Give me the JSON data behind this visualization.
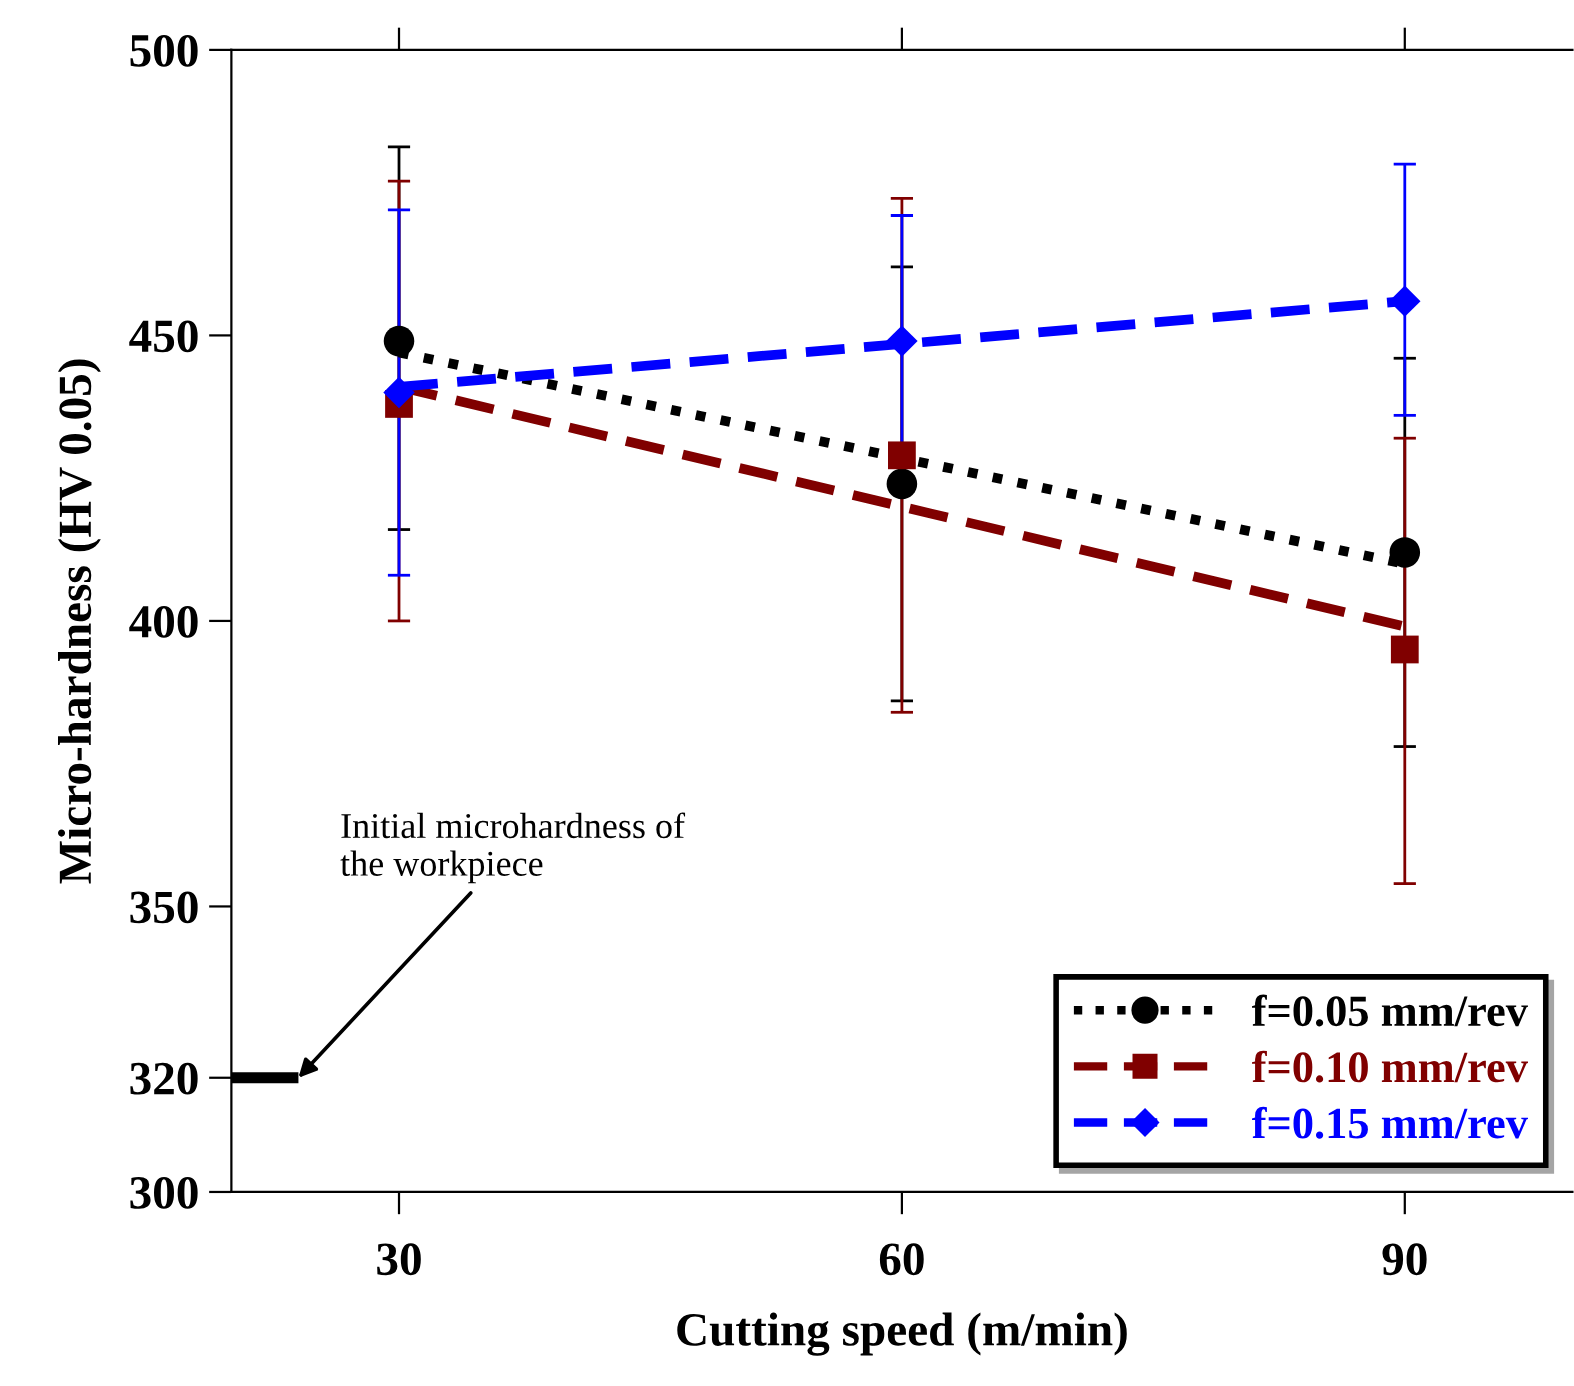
{
  "chart_data": {
    "type": "scatter",
    "xlabel": "Cutting speed (m/min)",
    "ylabel": "Micro-hardness (HV 0.05)",
    "x": [
      30,
      60,
      90
    ],
    "xlim": [
      20,
      100
    ],
    "xticks": [
      30,
      60,
      90
    ],
    "ylim": [
      300,
      500
    ],
    "yticks": [
      300,
      320,
      350,
      400,
      450,
      500
    ],
    "grid": false,
    "legend": "bottom right",
    "series": [
      {
        "name": "f=0.05 mm/rev",
        "color": "#000000",
        "values": [
          449,
          424,
          412
        ],
        "errors": [
          [
            416,
            483
          ],
          [
            386,
            462
          ],
          [
            378,
            446
          ]
        ],
        "marker": "circle",
        "line_style": "dotted"
      },
      {
        "name": "f=0.10 mm/rev",
        "color": "#800000",
        "values": [
          438,
          429,
          395
        ],
        "errors": [
          [
            400,
            477
          ],
          [
            384,
            474
          ],
          [
            354,
            432
          ]
        ],
        "marker": "square",
        "line_style": "dashed"
      },
      {
        "name": "f=0.15 mm/rev",
        "color": "#0000ff",
        "values": [
          440,
          449,
          456
        ],
        "errors": [
          [
            408,
            472
          ],
          [
            427,
            471
          ],
          [
            436,
            480
          ]
        ],
        "marker": "diamond",
        "line_style": "dashed"
      },
      {
        "type": "line",
        "color": "#000000",
        "x": [
          30,
          90
        ],
        "values": [
          447,
          410
        ],
        "line_style": "dotted",
        "marker": "none"
      },
      {
        "type": "line",
        "color": "#800000",
        "x": [
          30,
          90
        ],
        "values": [
          441,
          399
        ],
        "line_style": "dashed",
        "marker": "none"
      },
      {
        "type": "line",
        "color": "#0000ff",
        "x": [
          30,
          90
        ],
        "values": [
          441,
          456
        ],
        "line_style": "dashed",
        "marker": "none"
      },
      {
        "type": "line",
        "color": "#000000",
        "x": [
          20,
          24
        ],
        "values": [
          320,
          320
        ],
        "line_style": "solid",
        "marker": "none"
      }
    ],
    "annotations": [
      {
        "text": "Initial microhardness of\nthe workpiece",
        "x": 24,
        "y": 320
      }
    ]
  }
}
